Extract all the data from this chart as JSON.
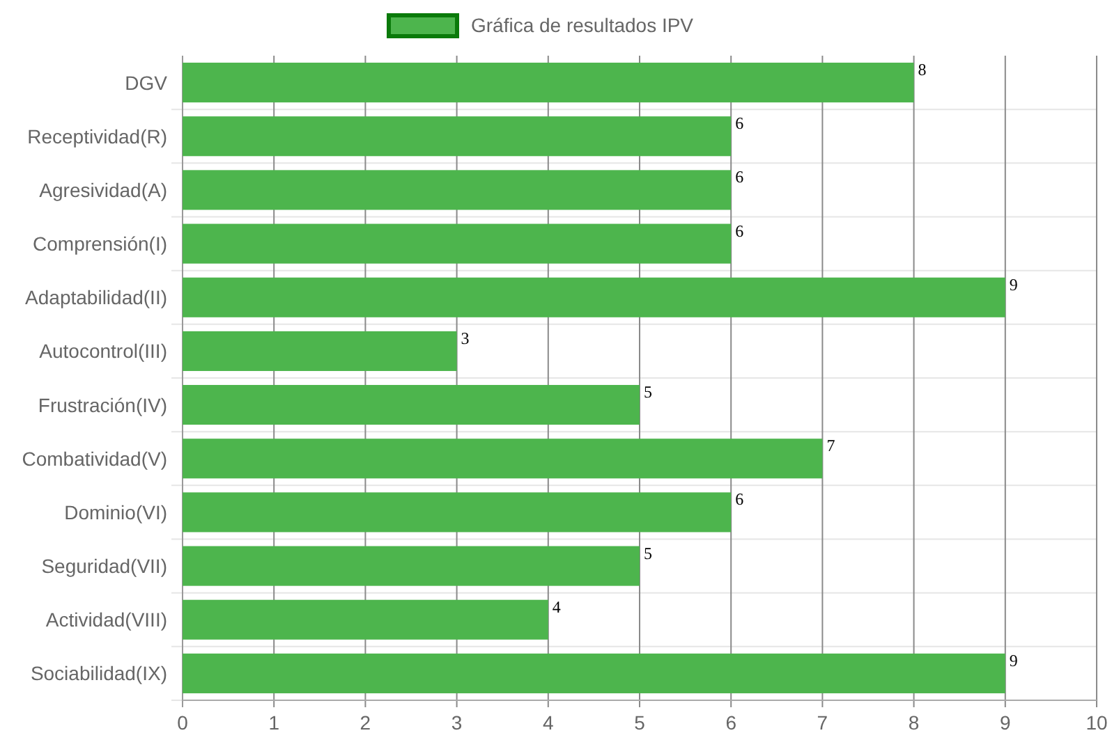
{
  "chart_data": {
    "type": "bar",
    "orientation": "horizontal",
    "categories": [
      "DGV",
      "Receptividad(R)",
      "Agresividad(A)",
      "Comprensión(I)",
      "Adaptabilidad(II)",
      "Autocontrol(III)",
      "Frustración(IV)",
      "Combatividad(V)",
      "Dominio(VI)",
      "Seguridad(VII)",
      "Actividad(VIII)",
      "Sociabilidad(IX)"
    ],
    "series": [
      {
        "name": "Gráfica de resultados IPV",
        "color": "#4db54d",
        "values": [
          8,
          6,
          6,
          6,
          9,
          3,
          5,
          7,
          6,
          5,
          4,
          9
        ]
      }
    ],
    "xlim": [
      0,
      10
    ],
    "xticks": [
      0,
      1,
      2,
      3,
      4,
      5,
      6,
      7,
      8,
      9,
      10
    ],
    "grid": true,
    "legend": "top",
    "data_labels": true
  }
}
